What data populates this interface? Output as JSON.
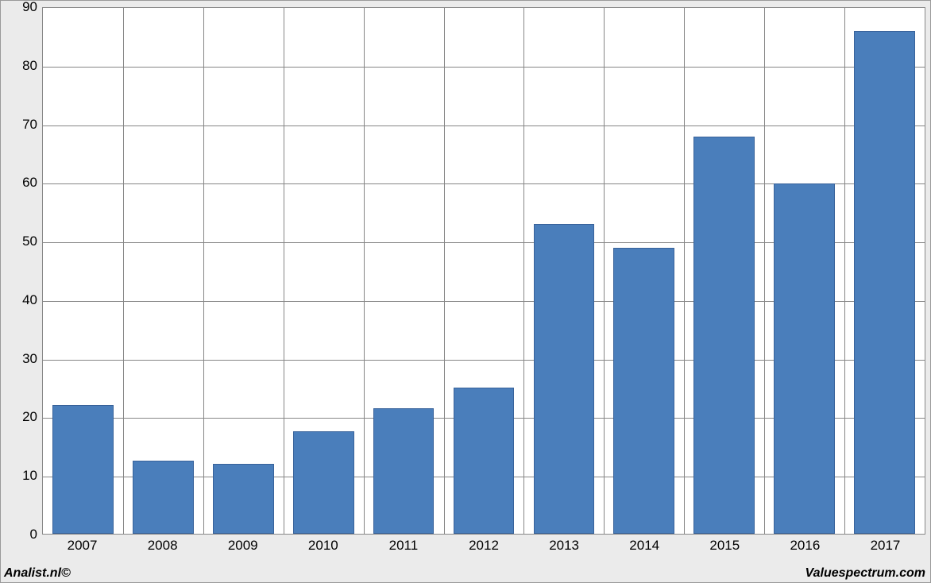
{
  "chart": {
    "type": "bar",
    "background_color": "#ebebeb",
    "plot_background_color": "#ffffff",
    "plot_border_color": "#888888",
    "grid_color": "#868686",
    "bar_color": "#4a7ebb",
    "bar_border_color": "#38629a",
    "bar_width_ratio": 0.76,
    "label_color": "#000000",
    "label_fontsize": 17,
    "y": {
      "min": 0,
      "max": 90,
      "ticks": [
        0,
        10,
        20,
        30,
        40,
        50,
        60,
        70,
        80,
        90
      ]
    },
    "categories": [
      "2007",
      "2008",
      "2009",
      "2010",
      "2011",
      "2012",
      "2013",
      "2014",
      "2015",
      "2016",
      "2017"
    ],
    "values": [
      22,
      12.5,
      12,
      17.5,
      21.5,
      25,
      53,
      49,
      68,
      60,
      86
    ]
  },
  "credits": {
    "left": "Analist.nl©",
    "right": "Valuespectrum.com"
  }
}
